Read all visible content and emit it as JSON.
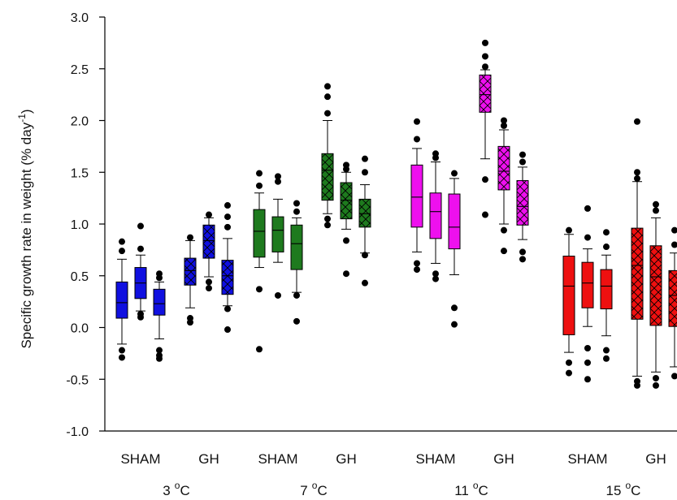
{
  "chart_data": {
    "type": "box",
    "title": "",
    "xlabel": "",
    "ylabel": "Specific growth rate in weight (% day",
    "ylabel_sup": "-1",
    "ylabel_close": ")",
    "ylim": [
      -1.0,
      3.0
    ],
    "yticks": [
      "-1.0",
      "-0.5",
      "0.0",
      "0.5",
      "1.0",
      "1.5",
      "2.0",
      "2.5",
      "3.0"
    ],
    "groups": [
      {
        "label": "3",
        "unit": "C",
        "color": "#1010e0",
        "subgroups": [
          {
            "label": "SHAM",
            "pattern": "solid",
            "boxes": [
              {
                "q1": 0.09,
                "median": 0.24,
                "q3": 0.44,
                "wlo": -0.16,
                "whi": 0.66,
                "outliers": [
                  -0.22,
                  -0.29,
                  0.74,
                  0.83
                ]
              },
              {
                "q1": 0.28,
                "median": 0.43,
                "q3": 0.58,
                "wlo": 0.16,
                "whi": 0.7,
                "outliers": [
                  0.1,
                  0.13,
                  0.76,
                  0.98
                ]
              },
              {
                "q1": 0.12,
                "median": 0.23,
                "q3": 0.37,
                "wlo": -0.11,
                "whi": 0.44,
                "outliers": [
                  -0.22,
                  -0.27,
                  -0.3,
                  0.48,
                  0.52
                ]
              }
            ]
          },
          {
            "label": "GH",
            "pattern": "hatch",
            "boxes": [
              {
                "q1": 0.41,
                "median": 0.55,
                "q3": 0.67,
                "wlo": 0.19,
                "whi": 0.84,
                "outliers": [
                  0.05,
                  0.09,
                  0.87
                ]
              },
              {
                "q1": 0.67,
                "median": 0.84,
                "q3": 0.99,
                "wlo": 0.49,
                "whi": 1.06,
                "outliers": [
                  0.38,
                  0.44,
                  1.09
                ]
              },
              {
                "q1": 0.32,
                "median": 0.5,
                "q3": 0.65,
                "wlo": 0.21,
                "whi": 0.86,
                "outliers": [
                  -0.02,
                  0.18,
                  0.97,
                  1.07,
                  1.18
                ]
              }
            ]
          }
        ]
      },
      {
        "label": "7",
        "unit": "C",
        "color": "#1e7a1e",
        "subgroups": [
          {
            "label": "SHAM",
            "pattern": "solid",
            "boxes": [
              {
                "q1": 0.68,
                "median": 0.93,
                "q3": 1.14,
                "wlo": 0.58,
                "whi": 1.3,
                "outliers": [
                  -0.21,
                  0.37,
                  1.37,
                  1.49
                ]
              },
              {
                "q1": 0.73,
                "median": 0.94,
                "q3": 1.07,
                "wlo": 0.63,
                "whi": 1.24,
                "outliers": [
                  0.31,
                  1.41,
                  1.46
                ]
              },
              {
                "q1": 0.56,
                "median": 0.81,
                "q3": 0.99,
                "wlo": 0.34,
                "whi": 1.06,
                "outliers": [
                  0.06,
                  0.31,
                  1.12,
                  1.2
                ]
              }
            ]
          },
          {
            "label": "GH",
            "pattern": "hatch",
            "boxes": [
              {
                "q1": 1.23,
                "median": 1.52,
                "q3": 1.68,
                "wlo": 1.1,
                "whi": 2.0,
                "outliers": [
                  0.99,
                  1.05,
                  2.07,
                  2.23,
                  2.33
                ]
              },
              {
                "q1": 1.05,
                "median": 1.23,
                "q3": 1.4,
                "wlo": 0.95,
                "whi": 1.5,
                "outliers": [
                  0.52,
                  0.84,
                  1.53,
                  1.57
                ]
              },
              {
                "q1": 0.97,
                "median": 1.1,
                "q3": 1.24,
                "wlo": 0.72,
                "whi": 1.38,
                "outliers": [
                  0.43,
                  0.7,
                  1.5,
                  1.63
                ]
              }
            ]
          }
        ]
      },
      {
        "label": "11",
        "unit": "C",
        "color": "#ee10ee",
        "subgroups": [
          {
            "label": "SHAM",
            "pattern": "solid",
            "boxes": [
              {
                "q1": 0.97,
                "median": 1.26,
                "q3": 1.57,
                "wlo": 0.73,
                "whi": 1.73,
                "outliers": [
                  0.56,
                  0.62,
                  1.82,
                  1.99
                ]
              },
              {
                "q1": 0.86,
                "median": 1.12,
                "q3": 1.3,
                "wlo": 0.62,
                "whi": 1.6,
                "outliers": [
                  0.47,
                  0.52,
                  1.64,
                  1.68
                ]
              },
              {
                "q1": 0.76,
                "median": 0.97,
                "q3": 1.29,
                "wlo": 0.51,
                "whi": 1.44,
                "outliers": [
                  0.03,
                  0.19,
                  1.49
                ]
              }
            ]
          },
          {
            "label": "GH",
            "pattern": "hatch",
            "boxes": [
              {
                "q1": 2.08,
                "median": 2.25,
                "q3": 2.44,
                "wlo": 1.63,
                "whi": 2.49,
                "outliers": [
                  1.09,
                  1.43,
                  2.52,
                  2.62,
                  2.75
                ]
              },
              {
                "q1": 1.33,
                "median": 1.51,
                "q3": 1.75,
                "wlo": 1.0,
                "whi": 1.91,
                "outliers": [
                  0.74,
                  0.94,
                  1.95,
                  2.0
                ]
              },
              {
                "q1": 0.99,
                "median": 1.17,
                "q3": 1.42,
                "wlo": 0.85,
                "whi": 1.55,
                "outliers": [
                  0.66,
                  0.73,
                  1.6,
                  1.67
                ]
              }
            ]
          }
        ]
      },
      {
        "label": "15",
        "unit": "C",
        "color": "#ee1010",
        "subgroups": [
          {
            "label": "SHAM",
            "pattern": "solid",
            "boxes": [
              {
                "q1": -0.07,
                "median": 0.4,
                "q3": 0.69,
                "wlo": -0.24,
                "whi": 0.9,
                "outliers": [
                  -0.34,
                  -0.44,
                  0.94
                ]
              },
              {
                "q1": 0.19,
                "median": 0.43,
                "q3": 0.63,
                "wlo": 0.01,
                "whi": 0.76,
                "outliers": [
                  -0.2,
                  -0.34,
                  -0.5,
                  0.87,
                  1.15
                ]
              },
              {
                "q1": 0.18,
                "median": 0.4,
                "q3": 0.56,
                "wlo": -0.08,
                "whi": 0.7,
                "outliers": [
                  -0.22,
                  -0.3,
                  0.78,
                  0.92
                ]
              }
            ]
          },
          {
            "label": "GH",
            "pattern": "hatch",
            "boxes": [
              {
                "q1": 0.08,
                "median": 0.6,
                "q3": 0.96,
                "wlo": -0.47,
                "whi": 1.41,
                "outliers": [
                  -0.52,
                  -0.56,
                  1.44,
                  1.5,
                  1.99
                ]
              },
              {
                "q1": 0.02,
                "median": 0.49,
                "q3": 0.79,
                "wlo": -0.43,
                "whi": 1.06,
                "outliers": [
                  -0.49,
                  -0.56,
                  1.13,
                  1.19
                ]
              },
              {
                "q1": 0.01,
                "median": 0.31,
                "q3": 0.55,
                "wlo": -0.38,
                "whi": 0.72,
                "outliers": [
                  -0.47,
                  0.8,
                  0.94
                ]
              }
            ]
          }
        ]
      }
    ]
  }
}
